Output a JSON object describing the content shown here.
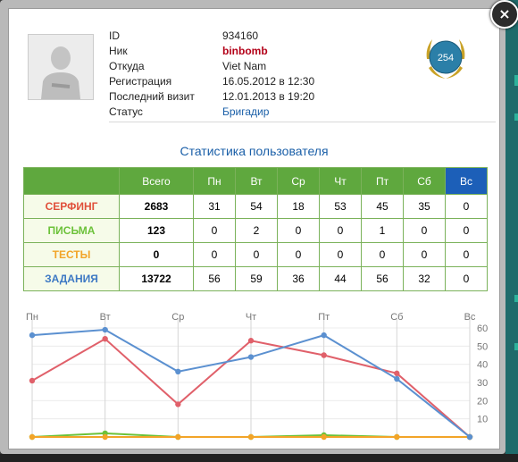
{
  "profile": {
    "rows": [
      {
        "label": "ID",
        "value": "934160"
      },
      {
        "label": "Ник",
        "value": "binbomb"
      },
      {
        "label": "Откуда",
        "value": "Viet Nam"
      },
      {
        "label": "Регистрация",
        "value": "16.05.2012 в 12:30"
      },
      {
        "label": "Последний визит",
        "value": "12.01.2013 в 19:20"
      },
      {
        "label": "Статус",
        "value": "Бригадир"
      }
    ],
    "rank": "254"
  },
  "close_label": "×",
  "stats": {
    "title": "Статистика пользователя",
    "headers": [
      "",
      "Всего",
      "Пн",
      "Вт",
      "Ср",
      "Чт",
      "Пт",
      "Сб",
      "Вс"
    ],
    "rows": [
      {
        "name": "СЕРФИНГ",
        "total": "2683",
        "days": [
          "31",
          "54",
          "18",
          "53",
          "45",
          "35",
          "0"
        ],
        "color": "#e0503a"
      },
      {
        "name": "ПИСЬМА",
        "total": "123",
        "days": [
          "0",
          "2",
          "0",
          "0",
          "1",
          "0",
          "0"
        ],
        "color": "#6cc23a"
      },
      {
        "name": "ТЕСТЫ",
        "total": "0",
        "days": [
          "0",
          "0",
          "0",
          "0",
          "0",
          "0",
          "0"
        ],
        "color": "#f2a428"
      },
      {
        "name": "ЗАДАНИЯ",
        "total": "13722",
        "days": [
          "56",
          "59",
          "36",
          "44",
          "56",
          "32",
          "0"
        ],
        "color": "#3e79c4"
      }
    ]
  },
  "chart_data": {
    "type": "line",
    "categories": [
      "Пн",
      "Вт",
      "Ср",
      "Чт",
      "Пт",
      "Сб",
      "Вс"
    ],
    "ylim": [
      0,
      60
    ],
    "yticks": [
      "60",
      "50",
      "40",
      "30",
      "20",
      "10"
    ],
    "series": [
      {
        "values": [
          31,
          54,
          18,
          53,
          45,
          35,
          0
        ],
        "color": "#e0606a"
      },
      {
        "values": [
          0,
          2,
          0,
          0,
          1,
          0,
          0
        ],
        "color": "#6cc23a"
      },
      {
        "values": [
          0,
          0,
          0,
          0,
          0,
          0,
          0
        ],
        "color": "#f2a428"
      },
      {
        "values": [
          56,
          59,
          36,
          44,
          56,
          32,
          0
        ],
        "color": "#5b90d0"
      }
    ]
  }
}
